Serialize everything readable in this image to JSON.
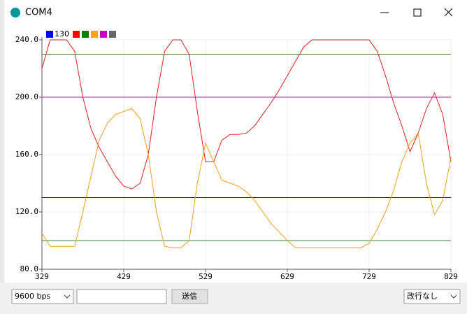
{
  "window": {
    "title": "COM4",
    "baud": "9600 bps",
    "send_button": "送信",
    "line_ending": "改行なし"
  },
  "chart_data": {
    "type": "line",
    "x": [
      329,
      339,
      349,
      359,
      369,
      379,
      389,
      399,
      409,
      419,
      429,
      439,
      449,
      459,
      469,
      479,
      489,
      499,
      509,
      519,
      529,
      539,
      549,
      559,
      569,
      579,
      589,
      599,
      609,
      619,
      629,
      639,
      649,
      659,
      669,
      679,
      689,
      699,
      709,
      719,
      729,
      739,
      749,
      759,
      769,
      779,
      789,
      799,
      809,
      819,
      829
    ],
    "xlim": [
      329,
      829
    ],
    "xticks": [
      329,
      429,
      529,
      629,
      729,
      829
    ],
    "ylim": [
      80,
      240
    ],
    "yticks": [
      {
        "value": 80,
        "label": "80.0"
      },
      {
        "value": 120,
        "label": "120.0"
      },
      {
        "value": 160,
        "label": "160.0"
      },
      {
        "value": 200,
        "label": "200.0"
      },
      {
        "value": 240,
        "label": "240.0"
      }
    ],
    "grid": true,
    "series": [
      {
        "name": "130",
        "color": "#0000ff",
        "line_color": "#1a1a6e",
        "values": [
          130,
          130,
          130,
          130,
          130,
          130,
          130,
          130,
          130,
          130,
          130,
          130,
          130,
          130,
          130,
          130,
          130,
          130,
          130,
          130,
          130,
          130,
          130,
          130,
          130,
          130,
          130,
          130,
          130,
          130,
          130,
          130,
          130,
          130,
          130,
          130,
          130,
          130,
          130,
          130,
          130,
          130,
          130,
          130,
          130,
          130,
          130,
          130,
          130,
          130,
          130
        ]
      },
      {
        "color": "#ff0000",
        "line_color": "#e02020",
        "values": [
          220,
          240,
          240,
          240,
          232,
          200,
          178,
          165,
          155,
          145,
          138,
          136,
          140,
          160,
          200,
          232,
          240,
          240,
          230,
          190,
          155,
          155,
          170,
          174,
          174,
          175,
          180,
          188,
          196,
          205,
          215,
          225,
          235,
          240,
          240,
          240,
          240,
          240,
          240,
          240,
          240,
          232,
          215,
          196,
          180,
          162,
          175,
          192,
          203,
          188,
          155
        ]
      },
      {
        "color": "#008000",
        "line_color": "#2e8b2e",
        "values": [
          100,
          100,
          100,
          100,
          100,
          100,
          100,
          100,
          100,
          100,
          100,
          100,
          100,
          100,
          100,
          100,
          100,
          100,
          100,
          100,
          100,
          100,
          100,
          100,
          100,
          100,
          100,
          100,
          100,
          100,
          100,
          100,
          100,
          100,
          100,
          100,
          100,
          100,
          100,
          100,
          100,
          100,
          100,
          100,
          100,
          100,
          100,
          100,
          100,
          100,
          100
        ]
      },
      {
        "color": "#ffa500",
        "line_color": "#f0a020",
        "values": [
          105,
          96,
          96,
          96,
          96,
          120,
          145,
          170,
          182,
          188,
          190,
          192,
          185,
          160,
          120,
          96,
          95,
          95,
          100,
          140,
          168,
          155,
          142,
          140,
          138,
          134,
          128,
          120,
          112,
          106,
          100,
          95,
          95,
          95,
          95,
          95,
          95,
          95,
          95,
          95,
          98,
          108,
          120,
          135,
          155,
          168,
          175,
          140,
          118,
          128,
          158
        ]
      },
      {
        "color": "#cc00cc",
        "line_color": "#a020a0",
        "values": [
          200,
          200,
          200,
          200,
          200,
          200,
          200,
          200,
          200,
          200,
          200,
          200,
          200,
          200,
          200,
          200,
          200,
          200,
          200,
          200,
          200,
          200,
          200,
          200,
          200,
          200,
          200,
          200,
          200,
          200,
          200,
          200,
          200,
          200,
          200,
          200,
          200,
          200,
          200,
          200,
          200,
          200,
          200,
          200,
          200,
          200,
          200,
          200,
          200,
          200,
          200
        ]
      },
      {
        "color": "#666666",
        "line_color": "#4a7a2a",
        "values": [
          230,
          230,
          230,
          230,
          230,
          230,
          230,
          230,
          230,
          230,
          230,
          230,
          230,
          230,
          230,
          230,
          230,
          230,
          230,
          230,
          230,
          230,
          230,
          230,
          230,
          230,
          230,
          230,
          230,
          230,
          230,
          230,
          230,
          230,
          230,
          230,
          230,
          230,
          230,
          230,
          230,
          230,
          230,
          230,
          230,
          230,
          230,
          230,
          230,
          230,
          230
        ]
      }
    ]
  }
}
